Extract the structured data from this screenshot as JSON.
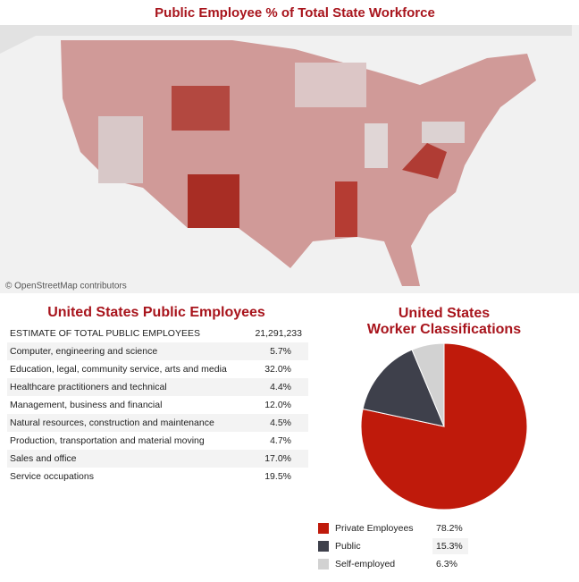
{
  "map": {
    "title": "Public Employee % of Total State Workforce",
    "attribution": "© OpenStreetMap contributors"
  },
  "table": {
    "title": "United States Public Employees",
    "rows": [
      [
        "ESTIMATE OF TOTAL PUBLIC EMPLOYEES",
        "21,291,233"
      ],
      [
        "Computer, engineering and science",
        "5.7%"
      ],
      [
        "Education, legal, community service, arts and media",
        "32.0%"
      ],
      [
        "Healthcare practitioners and technical",
        "4.4%"
      ],
      [
        "Management, business and financial",
        "12.0%"
      ],
      [
        "Natural resources, construction and maintenance",
        "4.5%"
      ],
      [
        "Production, transportation and material moving",
        "4.7%"
      ],
      [
        "Sales and office",
        "17.0%"
      ],
      [
        "Service occupations",
        "19.5%"
      ]
    ]
  },
  "chart_data": {
    "type": "pie",
    "title": [
      "United States",
      "Worker Classifications"
    ],
    "categories": [
      "Private Employees",
      "Public",
      "Self-employed"
    ],
    "values": [
      78.2,
      15.3,
      6.3
    ],
    "value_labels": [
      "78.2%",
      "15.3%",
      "6.3%"
    ],
    "colors": [
      "#bf1a0b",
      "#3e404b",
      "#d2d2d2"
    ]
  }
}
